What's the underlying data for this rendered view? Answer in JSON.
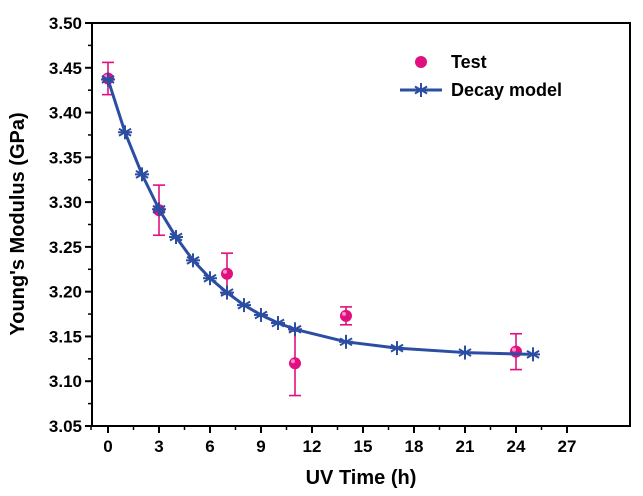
{
  "chart_data": {
    "type": "scatter",
    "xlabel": "UV Time (h)",
    "ylabel": "Young's Modulus (GPa)",
    "xlim": [
      -1,
      27
    ],
    "ylim": [
      3.05,
      3.5
    ],
    "xticks": [
      "0",
      "3",
      "6",
      "9",
      "12",
      "15",
      "18",
      "21",
      "24",
      "27"
    ],
    "yticks": [
      "3.05",
      "3.10",
      "3.15",
      "3.20",
      "3.25",
      "3.30",
      "3.35",
      "3.40",
      "3.45",
      "3.50"
    ],
    "legend_position": "top-right",
    "grid": false,
    "series": [
      {
        "name": "Test",
        "kind": "points-with-error-bars",
        "color": "#e0117f",
        "points": [
          {
            "x": 0,
            "y": 3.438,
            "err": 0.018
          },
          {
            "x": 3,
            "y": 3.291,
            "err": 0.028
          },
          {
            "x": 7,
            "y": 3.22,
            "err": 0.023
          },
          {
            "x": 11,
            "y": 3.12,
            "err": 0.036
          },
          {
            "x": 14,
            "y": 3.173,
            "err": 0.01
          },
          {
            "x": 24,
            "y": 3.133,
            "err": 0.02
          }
        ]
      },
      {
        "name": "Decay model",
        "kind": "line-with-star-markers",
        "color": "#2b4ea3",
        "points": [
          {
            "x": 0,
            "y": 3.437
          },
          {
            "x": 1,
            "y": 3.378
          },
          {
            "x": 2,
            "y": 3.331
          },
          {
            "x": 3,
            "y": 3.292
          },
          {
            "x": 4,
            "y": 3.261
          },
          {
            "x": 5,
            "y": 3.235
          },
          {
            "x": 6,
            "y": 3.215
          },
          {
            "x": 7,
            "y": 3.199
          },
          {
            "x": 8,
            "y": 3.185
          },
          {
            "x": 9,
            "y": 3.174
          },
          {
            "x": 10,
            "y": 3.165
          },
          {
            "x": 11,
            "y": 3.158
          },
          {
            "x": 14,
            "y": 3.144
          },
          {
            "x": 17,
            "y": 3.137
          },
          {
            "x": 21,
            "y": 3.132
          },
          {
            "x": 25,
            "y": 3.13
          }
        ]
      }
    ]
  }
}
